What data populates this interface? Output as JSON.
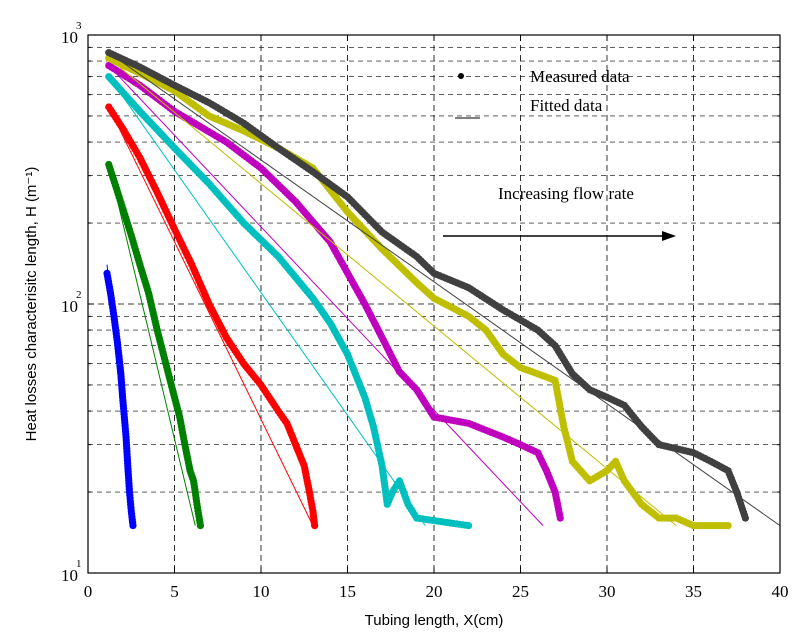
{
  "chart_data": {
    "type": "scatter",
    "title": "",
    "xlabel": "Tubing length, X(cm)",
    "ylabel": "Heat losses characterisitc length, H (m⁻¹)",
    "xlim": [
      0,
      40
    ],
    "ylim": [
      10,
      1000
    ],
    "yscale": "log",
    "grid": true,
    "x_ticks": [
      "0",
      "5",
      "10",
      "15",
      "20",
      "25",
      "30",
      "35",
      "40"
    ],
    "y_ticks": [
      {
        "base": "10",
        "exp": "1"
      },
      {
        "base": "10",
        "exp": "2"
      },
      {
        "base": "10",
        "exp": "3"
      }
    ],
    "legend": {
      "position": "top-right",
      "entries": [
        {
          "label": "Measured data",
          "symbol": "dot"
        },
        {
          "label": "Fitted data",
          "symbol": "line"
        }
      ]
    },
    "annotation": {
      "text": "Increasing flow rate",
      "arrow": "right"
    },
    "series": [
      {
        "color": "#0000ff",
        "measured": [
          [
            1.1,
            130
          ],
          [
            1.3,
            110
          ],
          [
            1.5,
            90
          ],
          [
            1.7,
            72
          ],
          [
            1.9,
            55
          ],
          [
            2.0,
            45
          ],
          [
            2.1,
            38
          ],
          [
            2.2,
            32
          ],
          [
            2.3,
            25
          ],
          [
            2.4,
            20
          ],
          [
            2.5,
            17
          ],
          [
            2.6,
            15
          ]
        ],
        "fit": [
          [
            1.1,
            140
          ],
          [
            2.6,
            15
          ]
        ]
      },
      {
        "color": "#008000",
        "measured": [
          [
            1.2,
            330
          ],
          [
            1.8,
            250
          ],
          [
            2.5,
            180
          ],
          [
            3.0,
            140
          ],
          [
            3.5,
            110
          ],
          [
            4.0,
            80
          ],
          [
            4.5,
            60
          ],
          [
            5.0,
            45
          ],
          [
            5.3,
            38
          ],
          [
            5.6,
            30
          ],
          [
            5.9,
            24
          ],
          [
            6.1,
            22
          ],
          [
            6.2,
            20
          ],
          [
            6.3,
            18
          ],
          [
            6.5,
            15
          ]
        ],
        "fit": [
          [
            1.2,
            330
          ],
          [
            6.2,
            15
          ]
        ]
      },
      {
        "color": "#ff0000",
        "measured": [
          [
            1.2,
            540
          ],
          [
            2,
            450
          ],
          [
            3,
            350
          ],
          [
            4,
            260
          ],
          [
            5,
            190
          ],
          [
            6,
            140
          ],
          [
            7,
            100
          ],
          [
            8,
            75
          ],
          [
            9,
            60
          ],
          [
            10,
            50
          ],
          [
            11,
            40
          ],
          [
            11.5,
            36
          ],
          [
            12,
            30
          ],
          [
            12.5,
            25
          ],
          [
            12.8,
            20
          ],
          [
            13,
            17
          ],
          [
            13.1,
            15
          ]
        ],
        "fit": [
          [
            1.2,
            540
          ],
          [
            13,
            15
          ]
        ]
      },
      {
        "color": "#00bfbf",
        "measured": [
          [
            1.2,
            700
          ],
          [
            3,
            520
          ],
          [
            5,
            380
          ],
          [
            7,
            280
          ],
          [
            9,
            200
          ],
          [
            11,
            150
          ],
          [
            13,
            105
          ],
          [
            14,
            85
          ],
          [
            15,
            65
          ],
          [
            16,
            45
          ],
          [
            16.5,
            35
          ],
          [
            17,
            25
          ],
          [
            17.3,
            18
          ],
          [
            17.6,
            20
          ],
          [
            18,
            22
          ],
          [
            18.5,
            18
          ],
          [
            19,
            16
          ],
          [
            22,
            15
          ]
        ],
        "fit": [
          [
            1.2,
            700
          ],
          [
            19.5,
            15
          ]
        ]
      },
      {
        "color": "#bf00bf",
        "measured": [
          [
            1.2,
            770
          ],
          [
            3,
            650
          ],
          [
            5,
            520
          ],
          [
            8,
            400
          ],
          [
            10,
            320
          ],
          [
            12,
            240
          ],
          [
            14,
            170
          ],
          [
            16,
            100
          ],
          [
            17,
            75
          ],
          [
            18,
            56
          ],
          [
            19,
            48
          ],
          [
            20,
            38
          ],
          [
            22,
            36
          ],
          [
            24,
            32
          ],
          [
            25,
            30
          ],
          [
            26,
            28
          ],
          [
            26.5,
            24
          ],
          [
            27,
            20
          ],
          [
            27.3,
            16
          ]
        ],
        "fit": [
          [
            1.2,
            770
          ],
          [
            26.3,
            15
          ]
        ]
      },
      {
        "color": "#bfbf00",
        "measured": [
          [
            1.2,
            820
          ],
          [
            3,
            720
          ],
          [
            5,
            620
          ],
          [
            7,
            500
          ],
          [
            9,
            440
          ],
          [
            11,
            380
          ],
          [
            13,
            320
          ],
          [
            15,
            220
          ],
          [
            17,
            160
          ],
          [
            19,
            120
          ],
          [
            20,
            105
          ],
          [
            22,
            90
          ],
          [
            23,
            80
          ],
          [
            24,
            65
          ],
          [
            25,
            58
          ],
          [
            26,
            55
          ],
          [
            27,
            52
          ],
          [
            27.5,
            35
          ],
          [
            28,
            26
          ],
          [
            29,
            22
          ],
          [
            30,
            24
          ],
          [
            30.5,
            26
          ],
          [
            31,
            22
          ],
          [
            32,
            18
          ],
          [
            33,
            16
          ],
          [
            34,
            16
          ],
          [
            35,
            15
          ],
          [
            36,
            15
          ],
          [
            37,
            15
          ]
        ],
        "fit": [
          [
            1.2,
            820
          ],
          [
            34,
            15
          ]
        ]
      },
      {
        "color": "#404040",
        "measured": [
          [
            1.2,
            860
          ],
          [
            3,
            760
          ],
          [
            5,
            650
          ],
          [
            7,
            560
          ],
          [
            9,
            470
          ],
          [
            11,
            380
          ],
          [
            13,
            310
          ],
          [
            15,
            250
          ],
          [
            17,
            185
          ],
          [
            19,
            150
          ],
          [
            20,
            130
          ],
          [
            22,
            115
          ],
          [
            24,
            95
          ],
          [
            26,
            80
          ],
          [
            27,
            70
          ],
          [
            28,
            55
          ],
          [
            29,
            48
          ],
          [
            30,
            45
          ],
          [
            31,
            42
          ],
          [
            32,
            35
          ],
          [
            33,
            30
          ],
          [
            34,
            29
          ],
          [
            35,
            28
          ],
          [
            36,
            26
          ],
          [
            37,
            24
          ],
          [
            37.5,
            20
          ],
          [
            38,
            16
          ]
        ],
        "fit": [
          [
            1.2,
            860
          ],
          [
            40,
            15
          ]
        ]
      }
    ]
  }
}
